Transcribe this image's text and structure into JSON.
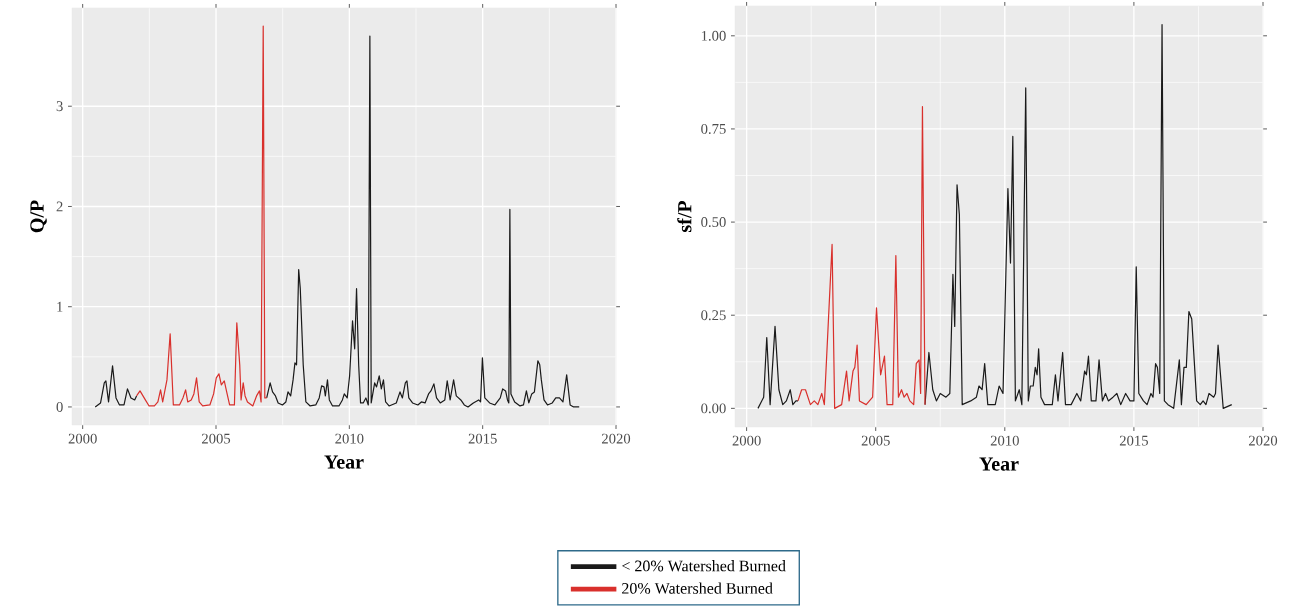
{
  "chart_data": [
    {
      "type": "line",
      "xlabel": "Year",
      "ylabel": "Q/P",
      "xlim": [
        1999.6,
        2020
      ],
      "ylim": [
        -0.18,
        3.98
      ],
      "xticks": [
        2000,
        2005,
        2010,
        2015,
        2020
      ],
      "yticks": [
        0,
        1,
        2,
        3
      ],
      "grid": true,
      "legend": "bottom",
      "series": [
        {
          "name": "< 20% Watershed Burned",
          "color": "#1a1a1a",
          "x": [
            2000.47,
            2000.67,
            2000.81,
            2000.87,
            2000.97,
            2001.12,
            2001.25,
            2001.38,
            2001.55,
            2001.68,
            2001.81,
            2001.95,
            2002.02,
            2004.5,
            2006.9,
            2007.03,
            2007.12,
            2007.23,
            2007.33,
            2007.49,
            2007.62,
            2007.7,
            2007.8,
            2007.89,
            2007.96,
            2008.02,
            2008.1,
            2008.16,
            2008.27,
            2008.37,
            2008.53,
            2008.74,
            2008.87,
            2008.96,
            2009.05,
            2009.1,
            2009.18,
            2009.25,
            2009.37,
            2009.61,
            2009.74,
            2009.81,
            2009.92,
            2010.01,
            2010.12,
            2010.2,
            2010.27,
            2010.35,
            2010.42,
            2010.52,
            2010.62,
            2010.71,
            2010.77,
            2010.82,
            2010.95,
            2011.02,
            2011.12,
            2011.2,
            2011.28,
            2011.36,
            2011.49,
            2011.76,
            2011.9,
            2011.99,
            2012.1,
            2012.16,
            2012.23,
            2012.37,
            2012.57,
            2012.7,
            2012.84,
            2012.97,
            2013.06,
            2013.17,
            2013.27,
            2013.41,
            2013.58,
            2013.67,
            2013.78,
            2013.91,
            2014.01,
            2014.18,
            2014.31,
            2014.45,
            2014.65,
            2014.85,
            2014.92,
            2014.99,
            2015.08,
            2015.26,
            2015.46,
            2015.66,
            2015.75,
            2015.86,
            2015.93,
            2015.98,
            2016.02,
            2016.06,
            2016.2,
            2016.4,
            2016.53,
            2016.64,
            2016.73,
            2016.84,
            2016.94,
            2017.07,
            2017.14,
            2017.2,
            2017.3,
            2017.43,
            2017.61,
            2017.74,
            2017.88,
            2018.01,
            2018.15,
            2018.28,
            2018.41,
            2018.62
          ],
          "values": [
            0,
            0.04,
            0.24,
            0.26,
            0.05,
            0.41,
            0.09,
            0.02,
            0.02,
            0.18,
            0.09,
            0.07,
            0.11,
            null,
            0.09,
            0.24,
            0.15,
            0.11,
            0.04,
            0.02,
            0.05,
            0.15,
            0.11,
            0.27,
            0.44,
            0.42,
            1.37,
            1.18,
            0.42,
            0.05,
            0.01,
            0.02,
            0.09,
            0.21,
            0.2,
            0.11,
            0.27,
            0.07,
            0.01,
            0.01,
            0.07,
            0.13,
            0.09,
            0.31,
            0.86,
            0.58,
            1.18,
            0.42,
            0.04,
            0.04,
            0.09,
            0.02,
            3.7,
            0.04,
            0.24,
            0.2,
            0.31,
            0.18,
            0.27,
            0.05,
            0.01,
            0.04,
            0.15,
            0.09,
            0.24,
            0.26,
            0.09,
            0.04,
            0.02,
            0.05,
            0.04,
            0.13,
            0.16,
            0.23,
            0.09,
            0.04,
            0.07,
            0.26,
            0.07,
            0.27,
            0.11,
            0.07,
            0.02,
            0,
            0.04,
            0.07,
            0.05,
            0.49,
            0.09,
            0.04,
            0.02,
            0.09,
            0.18,
            0.16,
            0.07,
            0.04,
            1.97,
            0.13,
            0.05,
            0.01,
            0.02,
            0.16,
            0.04,
            0.13,
            0.15,
            0.46,
            0.42,
            0.27,
            0.07,
            0.02,
            0.04,
            0.09,
            0.09,
            0.05,
            0.32,
            0.02,
            0,
            0
          ]
        },
        {
          "name": "20% Watershed Burned",
          "color": "#d9302c",
          "x": [
            2002.02,
            2002.15,
            2002.35,
            2002.49,
            2002.69,
            2002.82,
            2002.92,
            2003.0,
            2003.16,
            2003.28,
            2003.4,
            2003.63,
            2003.76,
            2003.86,
            2003.94,
            2004.07,
            2004.17,
            2004.27,
            2004.37,
            2004.5,
            2004.77,
            2004.91,
            2005.01,
            2005.11,
            2005.2,
            2005.31,
            2005.4,
            2005.51,
            2005.69,
            2005.78,
            2005.89,
            2005.94,
            2006.02,
            2006.09,
            2006.18,
            2006.38,
            2006.52,
            2006.63,
            2006.69,
            2006.77,
            2006.83,
            2006.9
          ],
          "values": [
            0.11,
            0.16,
            0.07,
            0.01,
            0.01,
            0.05,
            0.17,
            0.05,
            0.27,
            0.73,
            0.02,
            0.02,
            0.09,
            0.17,
            0.05,
            0.07,
            0.13,
            0.29,
            0.05,
            0.01,
            0.02,
            0.13,
            0.29,
            0.33,
            0.22,
            0.26,
            0.15,
            0.02,
            0.02,
            0.84,
            0.42,
            0.07,
            0.24,
            0.11,
            0.05,
            0.01,
            0.11,
            0.16,
            0.05,
            3.8,
            0.09,
            0.09
          ]
        }
      ]
    },
    {
      "type": "line",
      "xlabel": "Year",
      "ylabel": "sf/P",
      "xlim": [
        1999.55,
        2020
      ],
      "ylim": [
        -0.05,
        1.08
      ],
      "xticks": [
        2000,
        2005,
        2010,
        2015,
        2020
      ],
      "yticks": [
        {
          "value": 0,
          "label": "0.00"
        },
        {
          "value": 0.25,
          "label": "0.25"
        },
        {
          "value": 0.5,
          "label": "0.50"
        },
        {
          "value": 0.75,
          "label": "0.75"
        },
        {
          "value": 1,
          "label": "1.00"
        }
      ],
      "grid": true,
      "series": [
        {
          "color": "#1a1a1a",
          "x": [
            2000.44,
            2000.66,
            2000.78,
            2000.91,
            2001.1,
            2001.25,
            2001.4,
            2001.54,
            2001.69,
            2001.79,
            2001.91,
            2001.99,
            2004.5,
            2006.91,
            2007.06,
            2007.21,
            2007.35,
            2007.5,
            2007.72,
            2007.87,
            2007.99,
            2008.06,
            2008.15,
            2008.24,
            2008.35,
            2008.68,
            2008.9,
            2009.0,
            2009.12,
            2009.22,
            2009.34,
            2009.63,
            2009.78,
            2009.93,
            2010.12,
            2010.22,
            2010.31,
            2010.41,
            2010.56,
            2010.66,
            2010.81,
            2010.91,
            2010.99,
            2011.1,
            2011.18,
            2011.25,
            2011.31,
            2011.4,
            2011.54,
            2011.84,
            2011.96,
            2012.06,
            2012.24,
            2012.35,
            2012.57,
            2012.79,
            2012.94,
            2013.09,
            2013.16,
            2013.24,
            2013.35,
            2013.53,
            2013.65,
            2013.78,
            2013.9,
            2014.01,
            2014.19,
            2014.34,
            2014.49,
            2014.68,
            2014.85,
            2015.0,
            2015.09,
            2015.19,
            2015.37,
            2015.51,
            2015.66,
            2015.74,
            2015.84,
            2015.91,
            2016.0,
            2016.09,
            2016.18,
            2016.32,
            2016.54,
            2016.76,
            2016.84,
            2016.94,
            2017.03,
            2017.13,
            2017.24,
            2017.43,
            2017.57,
            2017.68,
            2017.79,
            2017.91,
            2018.09,
            2018.16,
            2018.26,
            2018.46,
            2018.79
          ],
          "values": [
            0,
            0.03,
            0.19,
            0.01,
            0.22,
            0.05,
            0.01,
            0.02,
            0.05,
            0.01,
            0.02,
            0.02,
            null,
            0.01,
            0.15,
            0.05,
            0.02,
            0.04,
            0.03,
            0.04,
            0.36,
            0.22,
            0.6,
            0.52,
            0.01,
            0.02,
            0.03,
            0.06,
            0.05,
            0.12,
            0.01,
            0.01,
            0.06,
            0.04,
            0.59,
            0.39,
            0.73,
            0.02,
            0.05,
            0.01,
            0.86,
            0.02,
            0.06,
            0.06,
            0.11,
            0.09,
            0.16,
            0.03,
            0.01,
            0.01,
            0.09,
            0.02,
            0.15,
            0.01,
            0.01,
            0.04,
            0.02,
            0.1,
            0.09,
            0.14,
            0.02,
            0.02,
            0.13,
            0.02,
            0.04,
            0.02,
            0.03,
            0.04,
            0.01,
            0.04,
            0.02,
            0.02,
            0.38,
            0.04,
            0.02,
            0.01,
            0.04,
            0.03,
            0.12,
            0.11,
            0.04,
            1.03,
            0.02,
            0.01,
            0,
            0.13,
            0.01,
            0.11,
            0.11,
            0.26,
            0.24,
            0.02,
            0.01,
            0.02,
            0.01,
            0.04,
            0.03,
            0.04,
            0.17,
            0,
            0.01
          ]
        },
        {
          "color": "#d9302c",
          "x": [
            2001.99,
            2002.13,
            2002.28,
            2002.47,
            2002.62,
            2002.76,
            2002.91,
            2003.01,
            2003.31,
            2003.41,
            2003.68,
            2003.87,
            2003.97,
            2004.12,
            2004.19,
            2004.28,
            2004.37,
            2004.63,
            2004.88,
            2005.03,
            2005.19,
            2005.34,
            2005.44,
            2005.66,
            2005.78,
            2005.88,
            2006.0,
            2006.1,
            2006.21,
            2006.32,
            2006.47,
            2006.57,
            2006.68,
            2006.74,
            2006.81,
            2006.91
          ],
          "values": [
            0.02,
            0.05,
            0.05,
            0.01,
            0.02,
            0.01,
            0.04,
            0.01,
            0.44,
            0,
            0.01,
            0.1,
            0.02,
            0.1,
            0.11,
            0.17,
            0.02,
            0.01,
            0.03,
            0.27,
            0.09,
            0.14,
            0.01,
            0.01,
            0.41,
            0.03,
            0.05,
            0.03,
            0.04,
            0.02,
            0.01,
            0.12,
            0.13,
            0.04,
            0.81,
            0.01
          ]
        }
      ]
    }
  ]
}
